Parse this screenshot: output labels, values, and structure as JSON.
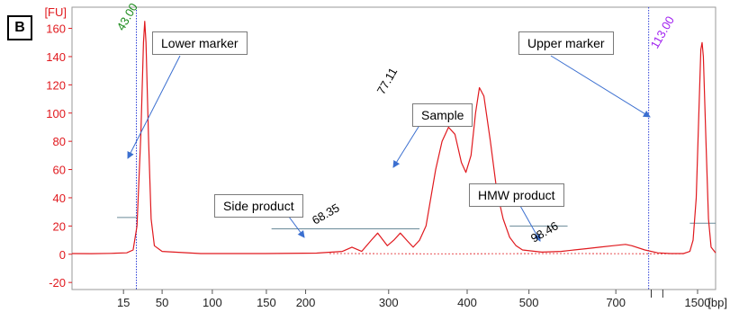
{
  "panel_label": "B",
  "callouts": {
    "lower_marker": "Lower marker",
    "upper_marker": "Upper marker",
    "sample": "Sample",
    "side_product": "Side product",
    "hmw_product": "HMW product"
  },
  "chart_data": {
    "type": "line",
    "y_unit_label": "[FU]",
    "x_unit_label": "[bp]",
    "ylim": [
      -25,
      175
    ],
    "y_ticks": [
      "-20",
      "0",
      "20",
      "40",
      "60",
      "80",
      "100",
      "120",
      "140",
      "160"
    ],
    "x_ticks": [
      "15",
      "50",
      "100",
      "150",
      "200",
      "300",
      "400",
      "500",
      "700",
      "1500"
    ],
    "series": [
      {
        "color": "#e0191e",
        "points": [
          [
            0.0,
            0.5
          ],
          [
            0.03,
            0.4
          ],
          [
            0.06,
            0.6
          ],
          [
            0.085,
            1.0
          ],
          [
            0.095,
            3
          ],
          [
            0.101,
            20
          ],
          [
            0.107,
            85
          ],
          [
            0.111,
            150
          ],
          [
            0.113,
            165
          ],
          [
            0.115,
            150
          ],
          [
            0.119,
            80
          ],
          [
            0.123,
            25
          ],
          [
            0.128,
            6
          ],
          [
            0.14,
            2
          ],
          [
            0.2,
            0.5
          ],
          [
            0.3,
            0.5
          ],
          [
            0.38,
            0.8
          ],
          [
            0.42,
            2
          ],
          [
            0.435,
            5
          ],
          [
            0.45,
            2
          ],
          [
            0.465,
            10
          ],
          [
            0.475,
            15
          ],
          [
            0.49,
            6
          ],
          [
            0.5,
            10
          ],
          [
            0.51,
            15
          ],
          [
            0.52,
            10
          ],
          [
            0.53,
            5
          ],
          [
            0.54,
            10
          ],
          [
            0.55,
            20
          ],
          [
            0.565,
            60
          ],
          [
            0.575,
            80
          ],
          [
            0.585,
            90
          ],
          [
            0.595,
            85
          ],
          [
            0.605,
            65
          ],
          [
            0.612,
            58
          ],
          [
            0.62,
            70
          ],
          [
            0.627,
            100
          ],
          [
            0.633,
            118
          ],
          [
            0.64,
            112
          ],
          [
            0.65,
            80
          ],
          [
            0.66,
            45
          ],
          [
            0.67,
            25
          ],
          [
            0.68,
            12
          ],
          [
            0.69,
            6
          ],
          [
            0.7,
            3
          ],
          [
            0.73,
            1.5
          ],
          [
            0.76,
            2
          ],
          [
            0.78,
            3
          ],
          [
            0.8,
            4
          ],
          [
            0.82,
            5
          ],
          [
            0.84,
            6
          ],
          [
            0.86,
            7
          ],
          [
            0.87,
            6
          ],
          [
            0.89,
            3
          ],
          [
            0.91,
            1
          ],
          [
            0.93,
            0.5
          ],
          [
            0.95,
            0.5
          ],
          [
            0.96,
            2
          ],
          [
            0.965,
            10
          ],
          [
            0.97,
            40
          ],
          [
            0.974,
            100
          ],
          [
            0.977,
            145
          ],
          [
            0.979,
            150
          ],
          [
            0.981,
            140
          ],
          [
            0.985,
            80
          ],
          [
            0.989,
            25
          ],
          [
            0.993,
            5
          ],
          [
            1.0,
            1
          ]
        ]
      }
    ],
    "peak_labels": [
      {
        "text": "43.00",
        "color": "#1a8a1a"
      },
      {
        "text": "68.35",
        "color": "#000000"
      },
      {
        "text": "77.11",
        "color": "#000000"
      },
      {
        "text": "98.46",
        "color": "#000000"
      },
      {
        "text": "113.00",
        "color": "#a020f0"
      }
    ]
  }
}
